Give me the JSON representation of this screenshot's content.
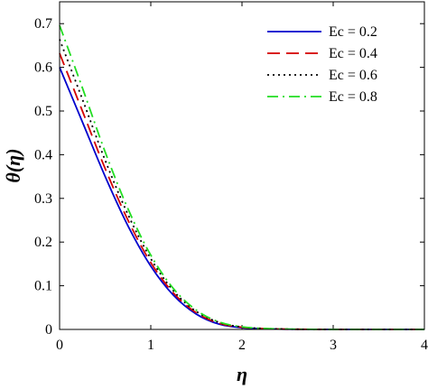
{
  "chart_data": {
    "type": "line",
    "title": "",
    "xlabel": "η",
    "ylabel": "θ(η)",
    "xlim": [
      0,
      4
    ],
    "ylim": [
      0,
      0.75
    ],
    "xticks": [
      "0",
      "1",
      "2",
      "3",
      "4"
    ],
    "yticks": [
      "0",
      "0.1",
      "0.2",
      "0.3",
      "0.4",
      "0.5",
      "0.6",
      "0.7"
    ],
    "grid": false,
    "legend_position": "top-right",
    "x": [
      0,
      0.25,
      0.5,
      0.75,
      1.0,
      1.25,
      1.5,
      1.75,
      2.0,
      2.25,
      2.5,
      2.75,
      3.0,
      3.5,
      4.0
    ],
    "series": [
      {
        "name": "Ec = 0.2",
        "color": "#0000cc",
        "dash": "solid",
        "values": [
          0.6,
          0.475,
          0.35,
          0.237,
          0.145,
          0.078,
          0.035,
          0.012,
          0.004,
          0.0015,
          0.0005,
          0.0002,
          0,
          0,
          0
        ]
      },
      {
        "name": "Ec = 0.4",
        "color": "#d40000",
        "dash": "dashed",
        "values": [
          0.632,
          0.5,
          0.368,
          0.25,
          0.153,
          0.083,
          0.038,
          0.014,
          0.005,
          0.0018,
          0.0006,
          0.0002,
          0,
          0,
          0
        ]
      },
      {
        "name": "Ec = 0.6",
        "color": "#000000",
        "dash": "dotted",
        "values": [
          0.664,
          0.527,
          0.387,
          0.263,
          0.162,
          0.088,
          0.041,
          0.016,
          0.0055,
          0.002,
          0.0007,
          0.0002,
          0,
          0,
          0
        ]
      },
      {
        "name": "Ec = 0.8",
        "color": "#22dd22",
        "dash": "dashdot",
        "values": [
          0.696,
          0.553,
          0.406,
          0.276,
          0.17,
          0.093,
          0.044,
          0.017,
          0.006,
          0.0022,
          0.0008,
          0.0003,
          0,
          0,
          0
        ]
      }
    ]
  }
}
